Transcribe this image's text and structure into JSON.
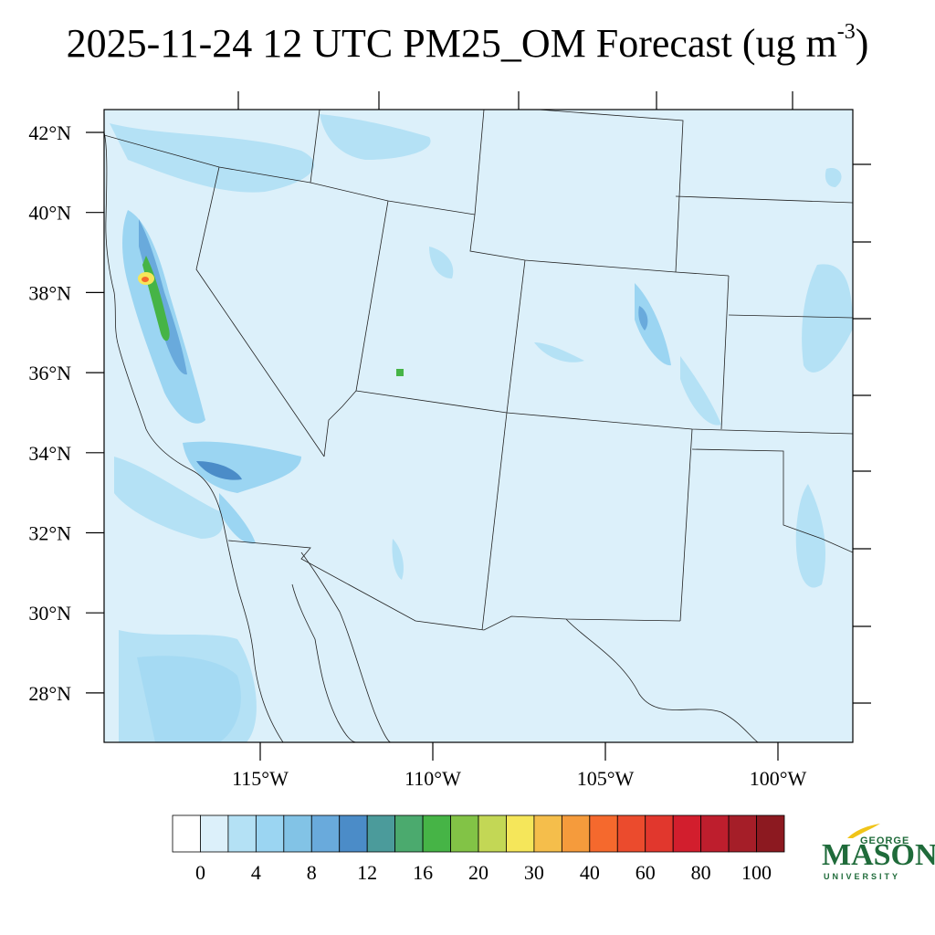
{
  "title": {
    "main": "2025-11-24 12 UTC PM25_OM Forecast (ug m",
    "superscript": "-3",
    "close": ")"
  },
  "map": {
    "background_color": "#dcf0fa",
    "lat_labels": [
      {
        "lat": 42,
        "label": "42°N"
      },
      {
        "lat": 40,
        "label": "40°N"
      },
      {
        "lat": 38,
        "label": "38°N"
      },
      {
        "lat": 36,
        "label": "36°N"
      },
      {
        "lat": 34,
        "label": "34°N"
      },
      {
        "lat": 32,
        "label": "32°N"
      },
      {
        "lat": 30,
        "label": "30°N"
      },
      {
        "lat": 28,
        "label": "28°N"
      }
    ],
    "lon_labels": [
      {
        "lon": -115,
        "label": "115°W"
      },
      {
        "lon": -110,
        "label": "110°W"
      },
      {
        "lon": -105,
        "label": "105°W"
      },
      {
        "lon": -100,
        "label": "100°W"
      }
    ]
  },
  "colorbar": {
    "colors": [
      "#ffffff",
      "#dcf0fa",
      "#b4e1f5",
      "#9bd5f2",
      "#82c3e6",
      "#69aadc",
      "#4b8cc8",
      "#4b9b9b",
      "#4baa6e",
      "#46b446",
      "#82c346",
      "#c3d755",
      "#f5e65a",
      "#f5be4b",
      "#f59b3c",
      "#f5692d",
      "#eb4b2d",
      "#e1372d",
      "#d21e2d",
      "#be1e2d",
      "#a51e28",
      "#8c1920"
    ],
    "labels": [
      "0",
      "4",
      "8",
      "12",
      "16",
      "20",
      "30",
      "40",
      "60",
      "80",
      "100"
    ]
  },
  "logo": {
    "top": "GEORGE",
    "main": "MASON",
    "bottom": "UNIVERSITY"
  }
}
